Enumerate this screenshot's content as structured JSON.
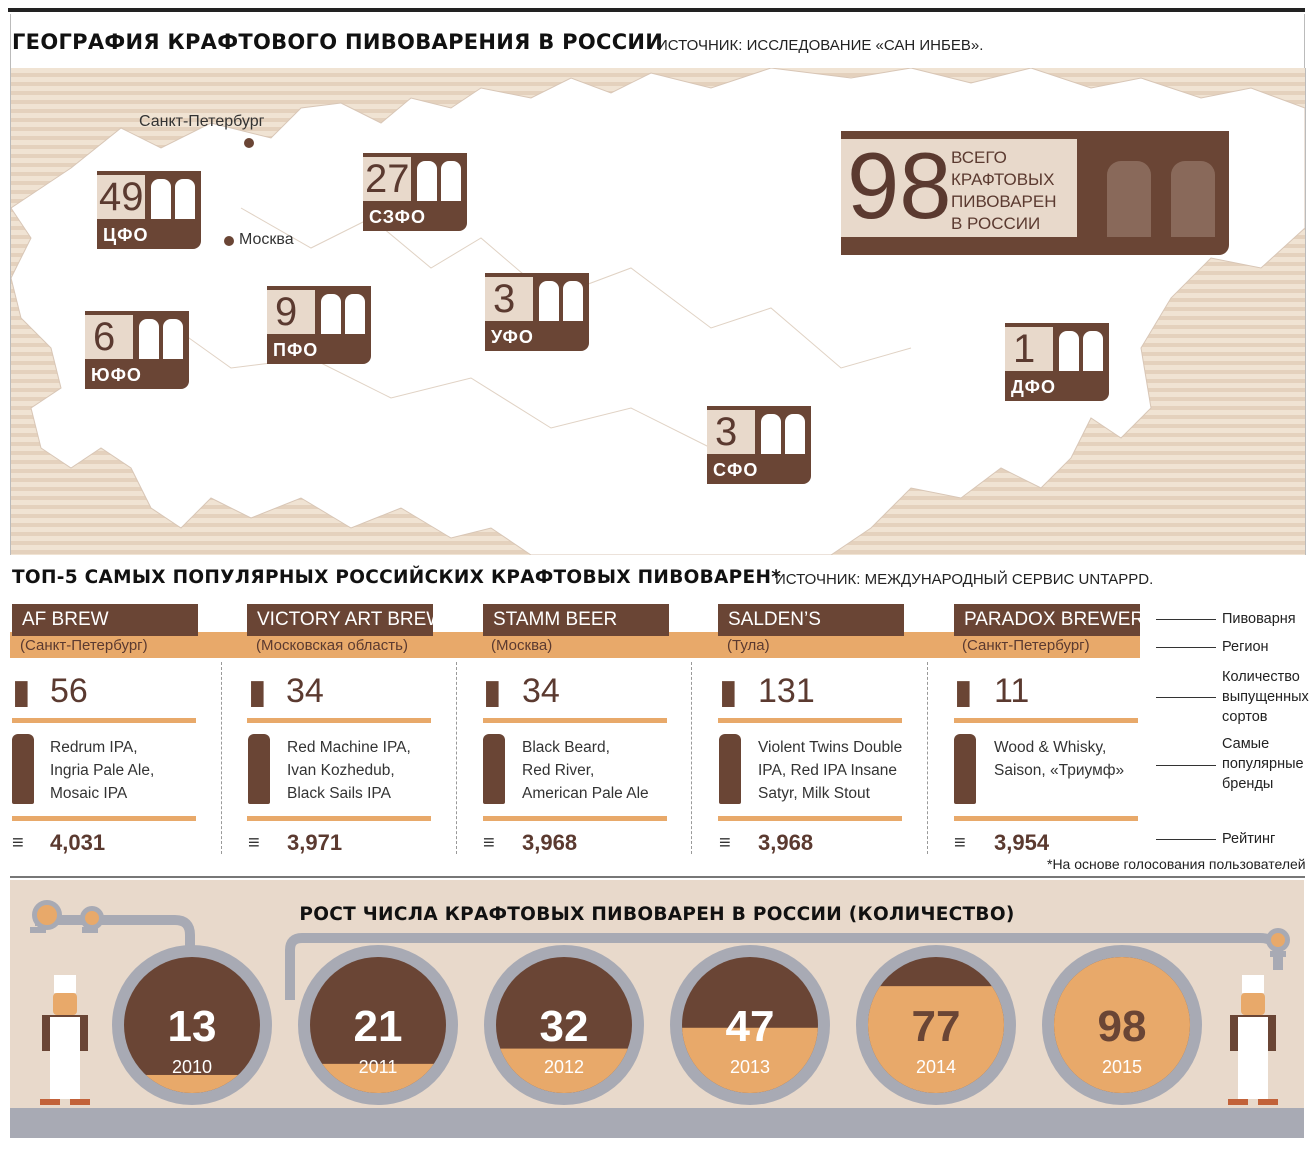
{
  "header": {
    "title": "ГЕОГРАФИЯ КРАФТОВОГО ПИВОВАРЕНИЯ В РОССИИ",
    "source": "ИСТОЧНИК: ИССЛЕДОВАНИЕ «САН ИНБЕВ»."
  },
  "map": {
    "cities": [
      {
        "name": "Санкт-Петербург"
      },
      {
        "name": "Москва"
      }
    ],
    "regions": [
      {
        "code": "ЦФО",
        "count": "49"
      },
      {
        "code": "СЗФО",
        "count": "27"
      },
      {
        "code": "ЮФО",
        "count": "6"
      },
      {
        "code": "ПФО",
        "count": "9"
      },
      {
        "code": "УФО",
        "count": "3"
      },
      {
        "code": "СФО",
        "count": "3"
      },
      {
        "code": "ДФО",
        "count": "1"
      }
    ],
    "total": {
      "count": "98",
      "label_lines": [
        "ВСЕГО",
        "КРАФТОВЫХ",
        "ПИВОВАРЕН",
        "В РОССИИ"
      ]
    }
  },
  "top5": {
    "title": "ТОП-5 САМЫХ ПОПУЛЯРНЫХ РОССИЙСКИХ КРАФТОВЫХ ПИВОВАРЕН*",
    "source": "ИСТОЧНИК: МЕЖДУНАРОДНЫЙ СЕРВИС UNTAPPD.",
    "breweries": [
      {
        "name": "AF BREW",
        "region": "(Санкт-Петербург)",
        "varieties": "56",
        "brands": [
          "Redrum IPA,",
          "Ingria Pale Ale,",
          "Mosaic IPA"
        ],
        "rating": "4,031"
      },
      {
        "name": "VICTORY ART BREW",
        "region": "(Московская область)",
        "varieties": "34",
        "brands": [
          "Red Machine IPA,",
          "Ivan Kozhedub,",
          "Black Sails IPA"
        ],
        "rating": "3,971"
      },
      {
        "name": "STAMM BEER",
        "region": "(Москва)",
        "varieties": "34",
        "brands": [
          "Black Beard,",
          "Red River,",
          "American Pale Ale"
        ],
        "rating": "3,968"
      },
      {
        "name": "SALDEN’S",
        "region": "(Тула)",
        "varieties": "131",
        "brands": [
          "Violent Twins Double",
          "IPA, Red IPA Insane",
          "Satyr, Milk Stout"
        ],
        "rating": "3,968"
      },
      {
        "name": "PARADOX BREWERY",
        "region": "(Санкт-Петербург)",
        "varieties": "11",
        "brands": [
          "Wood & Whisky,",
          "Saison, «Триумф»"
        ],
        "rating": "3,954"
      }
    ],
    "legend": {
      "brewery": "Пивоварня",
      "region": "Регион",
      "varieties": [
        "Количество",
        "выпущенных",
        "сортов"
      ],
      "brands": [
        "Самые",
        "популярные",
        "бренды"
      ],
      "rating": "Рейтинг"
    },
    "footnote": "*На основе голосования пользователей"
  },
  "growth": {
    "title": "РОСТ ЧИСЛА КРАФТОВЫХ ПИВОВАРЕН В РОССИИ (КОЛИЧЕСТВО)"
  },
  "chart_data": {
    "type": "bar",
    "title": "РОСТ ЧИСЛА КРАФТОВЫХ ПИВОВАРЕН В РОССИИ (КОЛИЧЕСТВО)",
    "categories": [
      "2010",
      "2011",
      "2012",
      "2013",
      "2014",
      "2015"
    ],
    "values": [
      13,
      21,
      32,
      47,
      77,
      98
    ],
    "ylim": [
      0,
      98
    ],
    "xlabel": "",
    "ylabel": ""
  },
  "colors": {
    "brown": "#6a4535",
    "orange": "#e8a96a",
    "beige": "#e8d9cb",
    "pipe": "#a8aab4"
  }
}
